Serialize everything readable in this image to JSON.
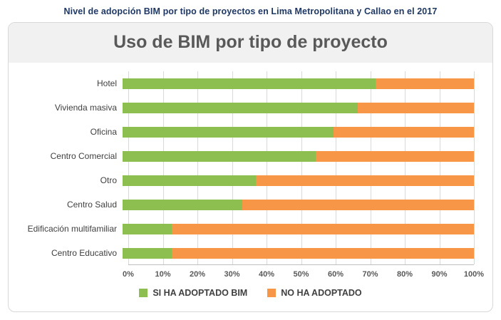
{
  "page": {
    "title": "Nivel de adopción BIM por tipo de proyectos en Lima Metropolitana y Callao en el 2017"
  },
  "colors": {
    "adopted_green": "#8CBE50",
    "not_adopted_orange": "#F79646",
    "page_title_navy": "#1F3864",
    "chart_title_gray": "#595959",
    "gridline_gray": "#D9D9D9"
  },
  "chart_data": {
    "type": "bar",
    "orientation": "horizontal",
    "stacked": true,
    "title": "Uso de BIM por tipo de proyecto",
    "categories": [
      "Hotel",
      "Vivienda masiva",
      "Oficina",
      "Centro Comercial",
      "Otro",
      "Centro Salud",
      "Edificación multifamiliar",
      "Centro Educativo"
    ],
    "series": [
      {
        "name": "SI HA ADOPTADO BIM",
        "color": "#8CBE50",
        "values": [
          72,
          67,
          60,
          55,
          38,
          34,
          14,
          14
        ]
      },
      {
        "name": "NO HA ADOPTADO",
        "color": "#F79646",
        "values": [
          28,
          33,
          40,
          45,
          62,
          66,
          86,
          86
        ]
      }
    ],
    "xlabel": "",
    "ylabel": "",
    "xlim": [
      0,
      100
    ],
    "xticks": [
      "0%",
      "10%",
      "20%",
      "30%",
      "40%",
      "50%",
      "60%",
      "70%",
      "80%",
      "90%",
      "100%"
    ],
    "grid": true,
    "legend_position": "bottom"
  }
}
